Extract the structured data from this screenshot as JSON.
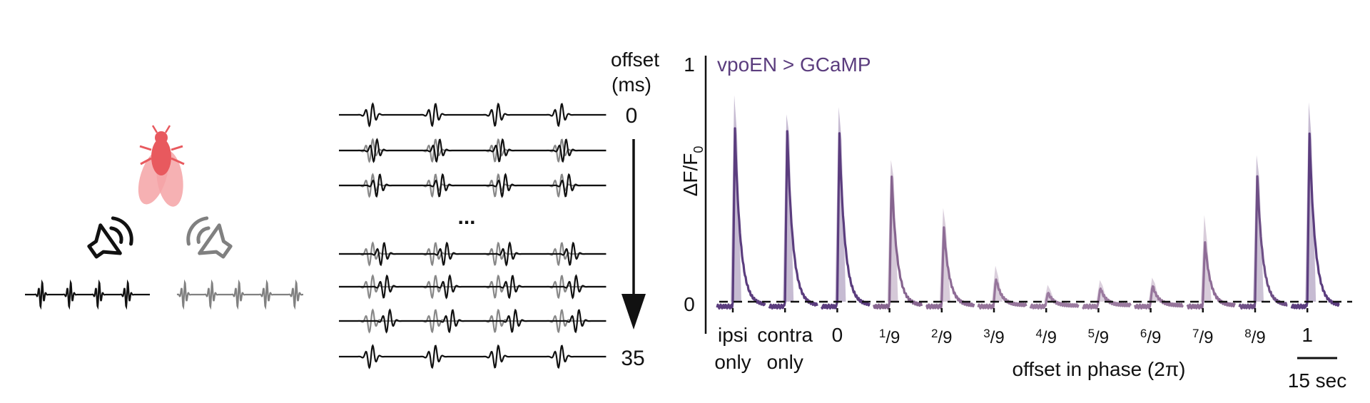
{
  "speakers": {
    "ipsi_color": "#111111",
    "contra_color": "#808080",
    "fly_color": "#e8595e",
    "speaker_icon": "speaker-icon",
    "fly_icon": "fly-icon"
  },
  "offset_panel": {
    "header_line1": "offset",
    "header_line2": "(ms)",
    "top_value": "0",
    "bottom_value": "35",
    "ellipsis": "...",
    "ipsi_color": "#111111",
    "contra_color": "#888888"
  },
  "chart_data": {
    "type": "line",
    "title": "vpoEN > GCaMP",
    "ylabel": "ΔF/F",
    "ylabel_sub": "0",
    "y_ticks": [
      "1",
      "0"
    ],
    "ylim": [
      -0.05,
      1.0
    ],
    "baseline": 0,
    "x_axis_label": "offset in phase (2π)",
    "scale_bar_label": "15 sec",
    "conditions": [
      {
        "line1": "ipsi",
        "line2": "only",
        "peak": 0.73,
        "sem_top": 0.86,
        "color": "#5b3d7e"
      },
      {
        "line1": "contra",
        "line2": "only",
        "peak": 0.73,
        "sem_top": 0.78,
        "color": "#5b3d7e"
      },
      {
        "label": "0",
        "peak": 0.71,
        "sem_top": 0.81,
        "color": "#5b3d7e"
      },
      {
        "num": "1",
        "den": "9",
        "peak": 0.54,
        "sem_top": 0.59,
        "color": "#86648f"
      },
      {
        "num": "2",
        "den": "9",
        "peak": 0.32,
        "sem_top": 0.39,
        "color": "#8e6c96"
      },
      {
        "num": "3",
        "den": "9",
        "peak": 0.11,
        "sem_top": 0.15,
        "color": "#96759b"
      },
      {
        "num": "4",
        "den": "9",
        "peak": 0.05,
        "sem_top": 0.07,
        "color": "#9b7ba0"
      },
      {
        "num": "5",
        "den": "9",
        "peak": 0.07,
        "sem_top": 0.09,
        "color": "#9b7ba0"
      },
      {
        "num": "6",
        "den": "9",
        "peak": 0.08,
        "sem_top": 0.1,
        "color": "#96759b"
      },
      {
        "num": "7",
        "den": "9",
        "peak": 0.26,
        "sem_top": 0.36,
        "color": "#8e6c96"
      },
      {
        "num": "8",
        "den": "9",
        "peak": 0.54,
        "sem_top": 0.61,
        "color": "#6e4f86"
      },
      {
        "label": "1",
        "peak": 0.71,
        "sem_top": 0.83,
        "color": "#5b3d7e"
      }
    ]
  }
}
